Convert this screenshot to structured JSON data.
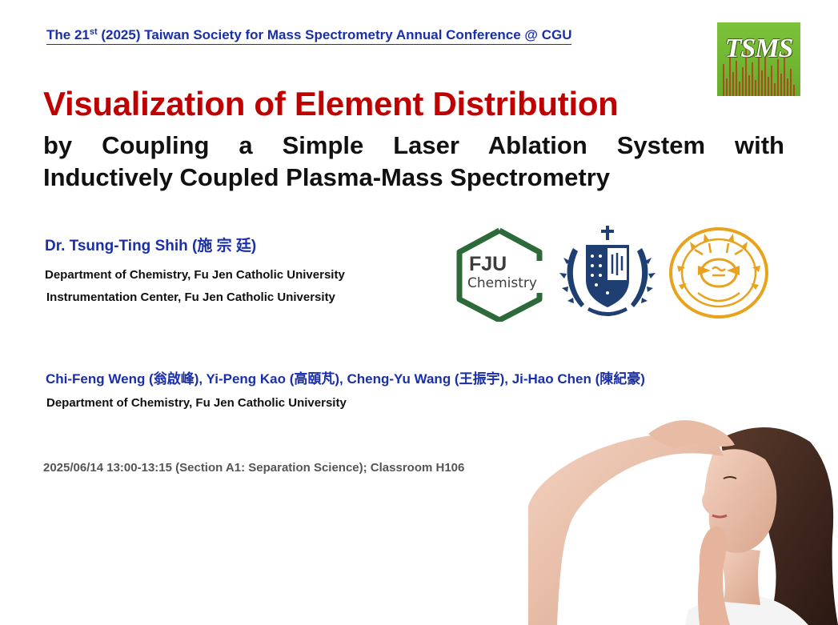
{
  "conference": {
    "prefix": "The 21",
    "ordinal_suffix": "st",
    "rest": " (2025) Taiwan Society for Mass Spectrometry Annual Conference @ CGU"
  },
  "logo_tsms": {
    "text": "TSMS",
    "colors": {
      "bg": "#6cb22e",
      "spikes": "#c2241b"
    }
  },
  "title": {
    "main": "Visualization of Element Distribution",
    "sub_line1": "by Coupling a Simple Laser Ablation System with",
    "sub_line2": "Inductively Coupled Plasma-Mass Spectrometry"
  },
  "presenter": {
    "name": "Dr. Tsung-Ting Shih (施 宗 廷)",
    "affiliations": [
      "Department of Chemistry, Fu Jen Catholic University",
      "Instrumentation Center, Fu Jen Catholic University"
    ]
  },
  "logos": {
    "fju": {
      "line1": "FJU",
      "line2": "Chemistry",
      "color": "#2d6a3a"
    },
    "fju_seal": {
      "color": "#1f3f73"
    },
    "cgu_seal": {
      "color": "#e8a21c"
    }
  },
  "coauthors": {
    "names": "Chi-Feng Weng (翁啟峰), Yi-Peng Kao (高頤芃), Cheng-Yu Wang (王振宇), Ji-Hao Chen (陳紀豪)",
    "affiliation": "Department of Chemistry, Fu Jen Catholic University"
  },
  "session": {
    "datetime": "2025/06/14  13:00-13:15 (Section A1: Separation Science); Classroom H106"
  },
  "colors": {
    "title_red": "#c00000",
    "blue": "#1a2fa8",
    "text": "#111111",
    "gray": "#555555"
  }
}
